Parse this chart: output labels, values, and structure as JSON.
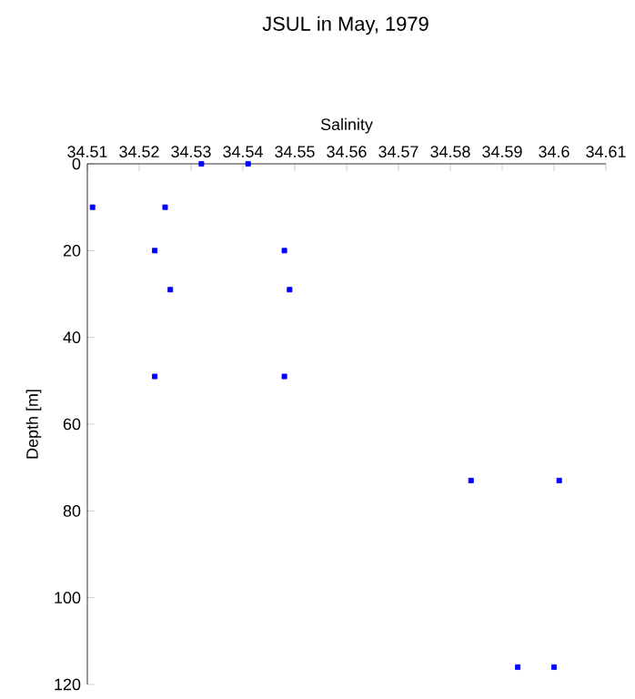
{
  "chart_data": {
    "type": "scatter",
    "title": "JSUL in May, 1979",
    "xlabel": "Salinity",
    "ylabel": "Depth [m]",
    "xlim": [
      34.51,
      34.61
    ],
    "xticks": [
      34.51,
      34.52,
      34.53,
      34.54,
      34.55,
      34.56,
      34.57,
      34.58,
      34.59,
      34.6,
      34.61
    ],
    "ylim": [
      120,
      0
    ],
    "yticks": [
      0,
      20,
      40,
      60,
      80,
      100,
      120
    ],
    "marker": "square",
    "series": [
      {
        "color": "#0000ff",
        "x": [
          34.532,
          34.541,
          34.511,
          34.525,
          34.523,
          34.548,
          34.526,
          34.549,
          34.523,
          34.548,
          34.584,
          34.601,
          34.593,
          34.6
        ],
        "values": [
          0,
          0,
          10,
          10,
          20,
          20,
          29,
          29,
          49,
          49,
          73,
          73,
          116,
          116
        ]
      }
    ]
  }
}
